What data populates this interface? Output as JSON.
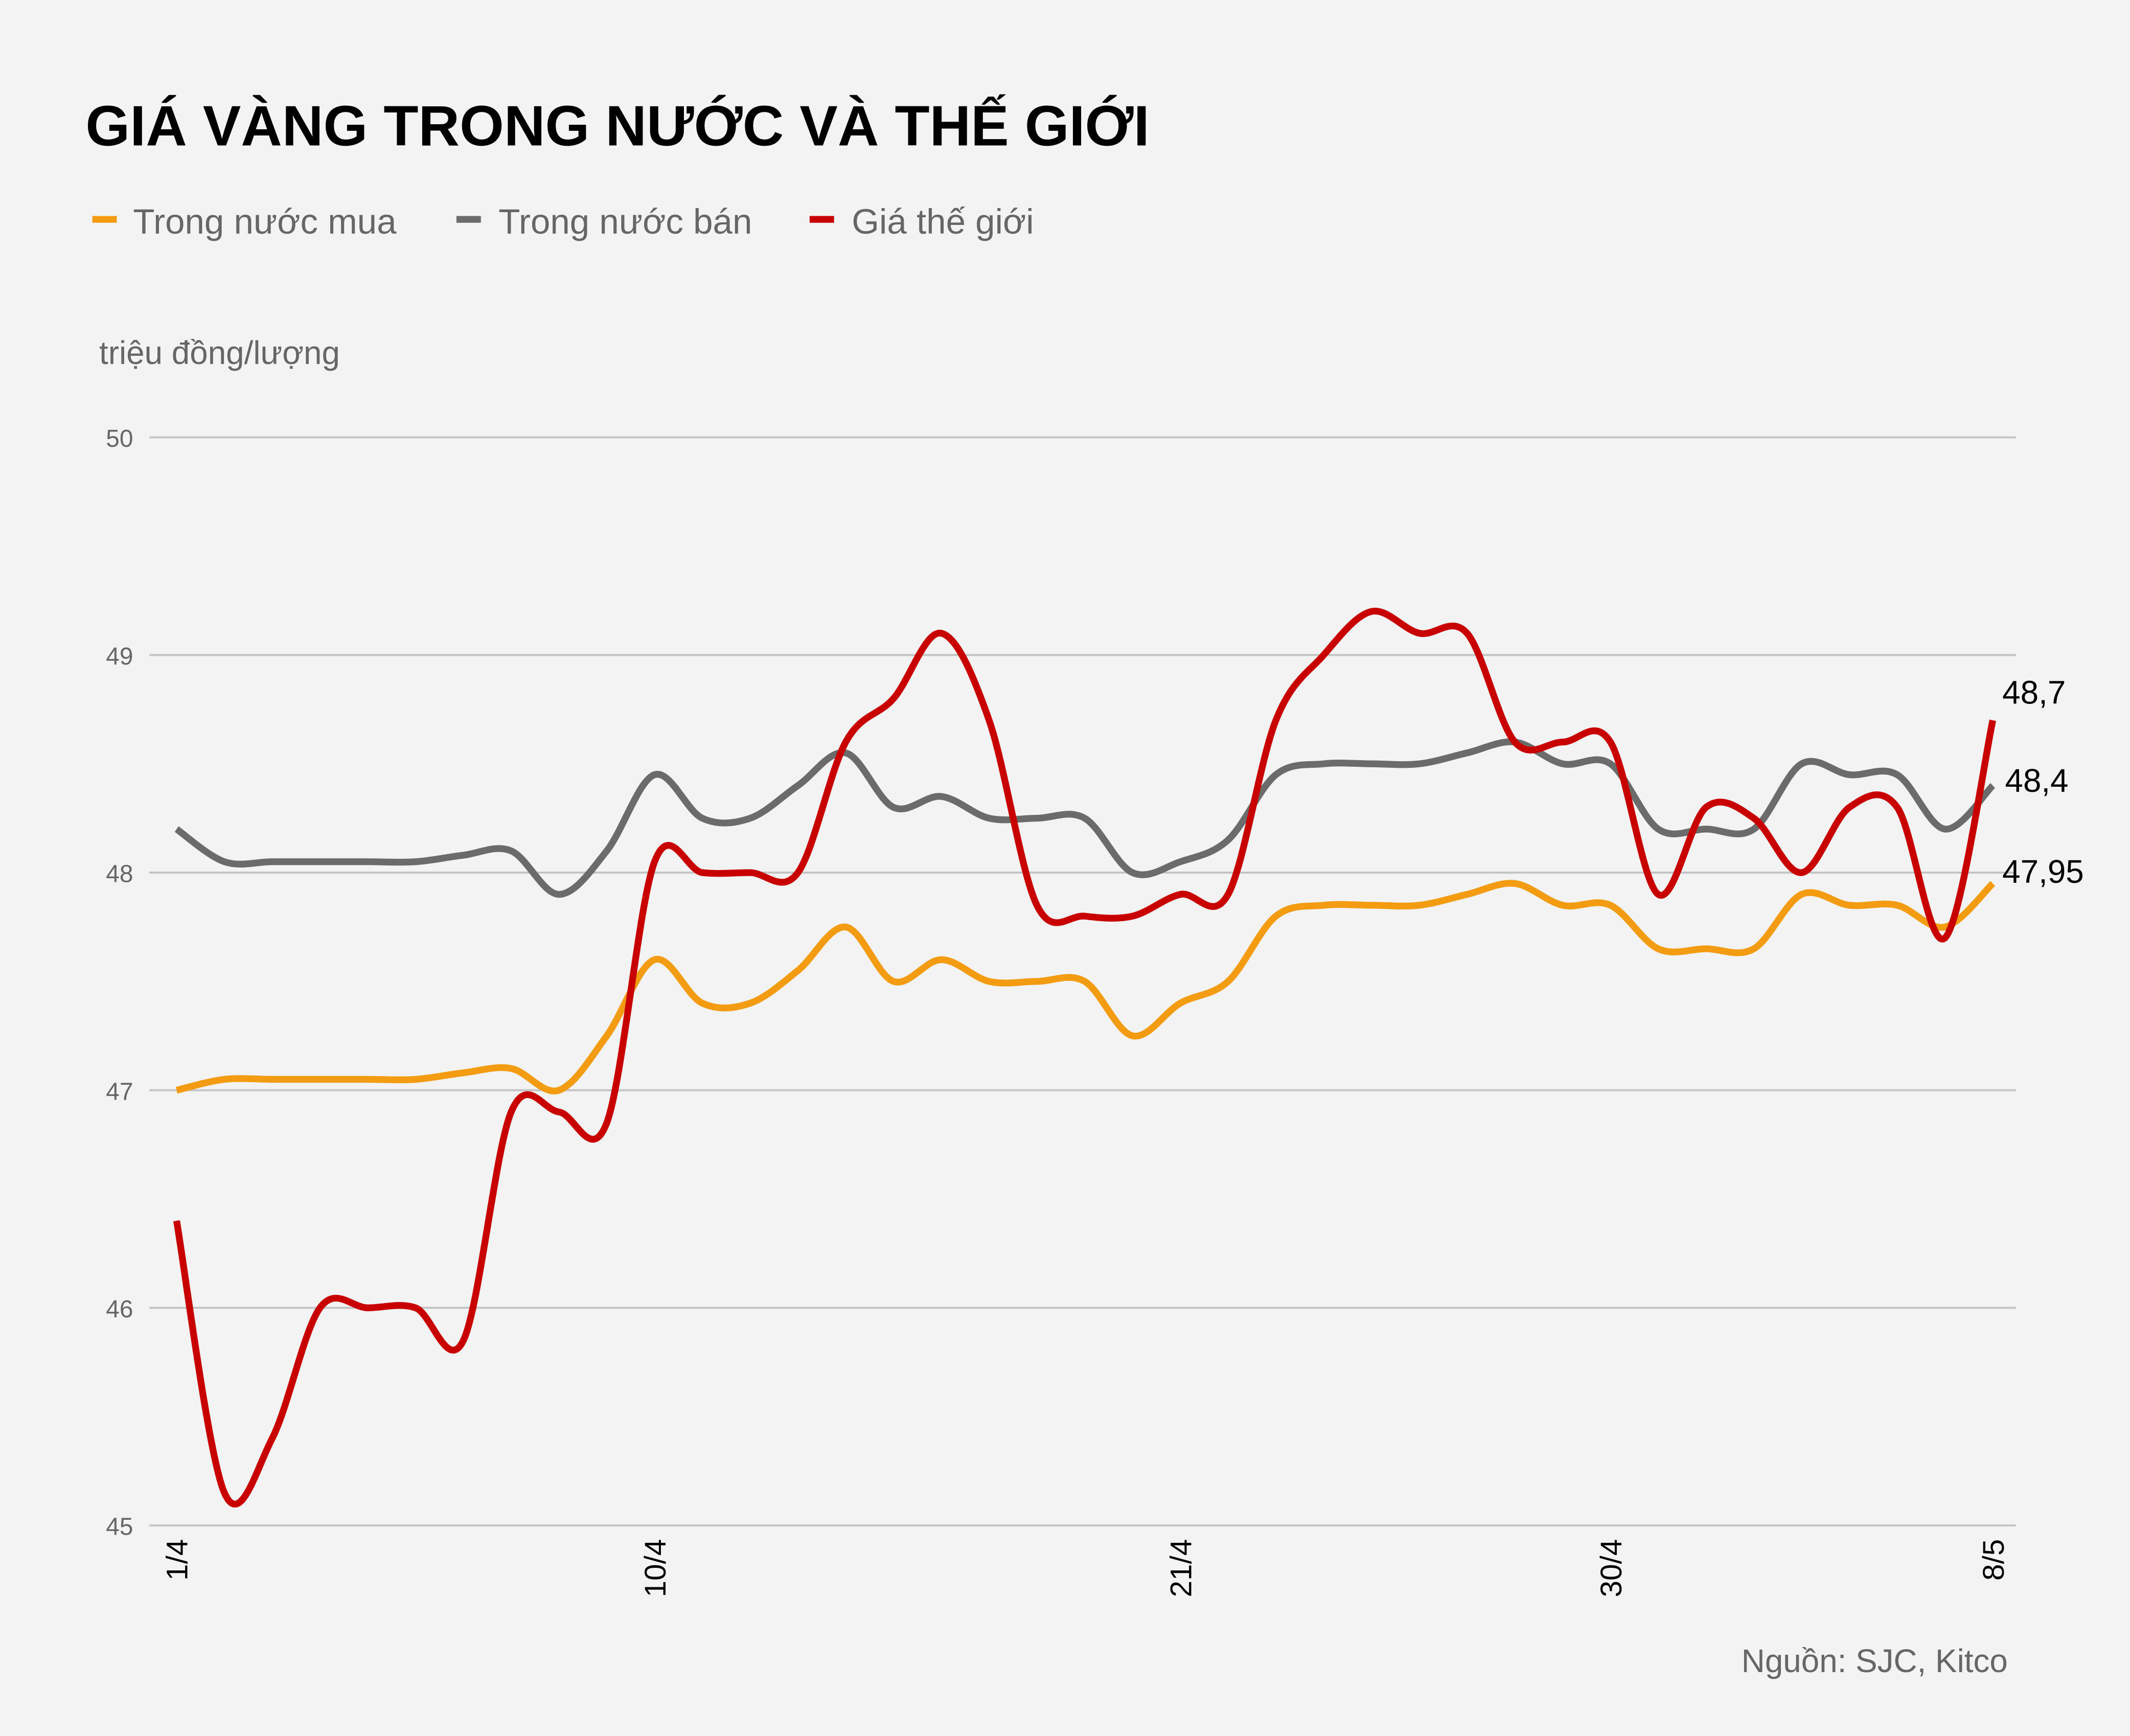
{
  "title": "GIÁ VÀNG TRONG NƯỚC VÀ THẾ GIỚI",
  "legend": [
    {
      "label": "Trong nước mua",
      "color": "#f39c12"
    },
    {
      "label": "Trong nước bán",
      "color": "#6b6b6b"
    },
    {
      "label": "Giá thế giới",
      "color": "#c90000"
    }
  ],
  "unit_label": "triệu đồng/lượng",
  "source": "Nguồn: SJC, Kitco",
  "end_labels": {
    "world": "48,7",
    "sell": "48,4",
    "buy": "47,95"
  },
  "chart_data": {
    "type": "line",
    "title": "GIÁ VÀNG TRONG NƯỚC VÀ THẾ GIỚI",
    "xlabel": "",
    "ylabel": "triệu đồng/lượng",
    "ylim": [
      45,
      50
    ],
    "yticks": [
      45,
      46,
      47,
      48,
      49,
      50
    ],
    "xtick_labels": [
      "1/4",
      "10/4",
      "21/4",
      "30/4",
      "8/5"
    ],
    "xtick_positions": [
      0,
      10,
      21,
      30,
      38
    ],
    "grid": true,
    "legend_position": "top-left",
    "x": [
      0,
      1,
      2,
      3,
      4,
      5,
      6,
      7,
      8,
      9,
      10,
      11,
      12,
      13,
      14,
      15,
      16,
      17,
      18,
      19,
      20,
      21,
      22,
      23,
      24,
      25,
      26,
      27,
      28,
      29,
      30,
      31,
      32,
      33,
      34,
      35,
      36,
      37,
      38
    ],
    "series": [
      {
        "name": "Trong nước mua",
        "color": "#f39c12",
        "values": [
          47.0,
          47.05,
          47.05,
          47.05,
          47.05,
          47.05,
          47.08,
          47.1,
          47.0,
          47.25,
          47.6,
          47.4,
          47.4,
          47.55,
          47.75,
          47.5,
          47.6,
          47.5,
          47.5,
          47.5,
          47.25,
          47.4,
          47.5,
          47.8,
          47.85,
          47.85,
          47.85,
          47.9,
          47.95,
          47.85,
          47.85,
          47.65,
          47.65,
          47.65,
          47.9,
          47.85,
          47.85,
          47.75,
          47.95
        ]
      },
      {
        "name": "Trong nước bán",
        "color": "#6b6b6b",
        "values": [
          48.2,
          48.05,
          48.05,
          48.05,
          48.05,
          48.05,
          48.08,
          48.1,
          47.9,
          48.1,
          48.45,
          48.25,
          48.25,
          48.4,
          48.55,
          48.3,
          48.35,
          48.25,
          48.25,
          48.25,
          48.0,
          48.05,
          48.15,
          48.45,
          48.5,
          48.5,
          48.5,
          48.55,
          48.6,
          48.5,
          48.5,
          48.2,
          48.2,
          48.2,
          48.5,
          48.45,
          48.45,
          48.2,
          48.4
        ]
      },
      {
        "name": "Giá thế giới",
        "color": "#c90000",
        "values": [
          46.4,
          45.15,
          45.4,
          46.0,
          46.0,
          46.0,
          45.85,
          46.9,
          46.9,
          46.85,
          48.05,
          48.0,
          48.0,
          48.0,
          48.6,
          48.8,
          49.1,
          48.7,
          47.85,
          47.8,
          47.8,
          47.9,
          47.9,
          48.7,
          49.0,
          49.2,
          49.1,
          49.1,
          48.6,
          48.6,
          48.6,
          47.9,
          48.3,
          48.25,
          48.0,
          48.3,
          48.3,
          47.7,
          48.7
        ]
      }
    ]
  }
}
